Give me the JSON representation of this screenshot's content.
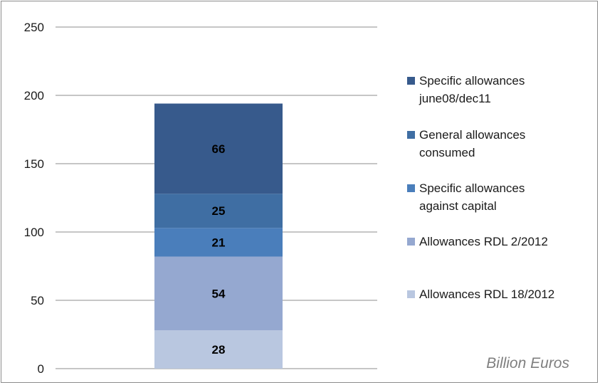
{
  "chart_data": {
    "type": "bar",
    "stacked": true,
    "categories": [
      ""
    ],
    "series": [
      {
        "name": "Allowances RDL 18/2012",
        "values": [
          28
        ],
        "color": "#b9c7e0"
      },
      {
        "name": "Allowances RDL 2/2012",
        "values": [
          54
        ],
        "color": "#95a8d0"
      },
      {
        "name": "Specific allowances against capital",
        "values": [
          21
        ],
        "color": "#4a7ebb"
      },
      {
        "name": "General allowances consumed",
        "values": [
          25
        ],
        "color": "#3f6ea3"
      },
      {
        "name": "Specific allowances june08/dec11",
        "values": [
          66
        ],
        "color": "#375a8c"
      }
    ],
    "legend_order": [
      {
        "lines": [
          "Specific allowances",
          "june08/dec11"
        ],
        "color": "#375a8c"
      },
      {
        "lines": [
          "General allowances",
          "consumed"
        ],
        "color": "#3f6ea3"
      },
      {
        "lines": [
          "Specific allowances",
          "against capital"
        ],
        "color": "#4a7ebb"
      },
      {
        "lines": [
          "Allowances RDL 2/2012"
        ],
        "color": "#95a8d0"
      },
      {
        "lines": [
          "Allowances RDL 18/2012"
        ],
        "color": "#b9c7e0"
      }
    ],
    "yticks": [
      "0",
      "50",
      "100",
      "150",
      "200",
      "250"
    ],
    "ylim": [
      0,
      250
    ],
    "grid": true,
    "legend_position": "right",
    "unit_note": "Billion Euros",
    "title": "",
    "xlabel": "",
    "ylabel": ""
  }
}
